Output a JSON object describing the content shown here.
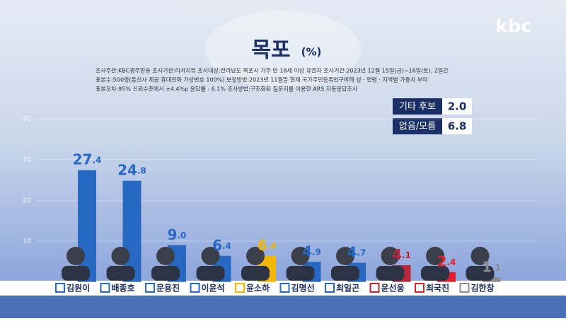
{
  "chart_data": {
    "type": "bar",
    "logo": "kbc",
    "title": "목포",
    "unit": "(%)",
    "notes": [
      "조사주관:KBC광주방송   조사기관:리서치뷰   조사대상:전라남도 목포시 거주 만 18세 이상 유권자  조사기간:2023년 12월 15일(금)~16일(토), 2일간",
      "표본수:500명(통신사 제공 휴대전화 가상번호 100%)   보정방법:2023년 11월말 현재 국가주민등록인구비례 성 · 연령 · 지역별 가중치 부여",
      "표본오차:95% 신뢰수준에서 ±4.4%p   응답률 : 6.1%   조사방법:구조화된 질문지를 이용한 ARS 자동응답조사"
    ],
    "extra": [
      {
        "label": "기타 후보",
        "value": "2.0"
      },
      {
        "label": "없음/모름",
        "value": "6.8"
      }
    ],
    "categories": [
      "김원이",
      "배종호",
      "문용진",
      "이윤석",
      "윤소하",
      "김명선",
      "최일곤",
      "윤선웅",
      "최국진",
      "김한창"
    ],
    "values": [
      27.4,
      24.8,
      9.0,
      6.4,
      6.4,
      4.9,
      4.7,
      4.1,
      2.4,
      1.1
    ],
    "value_labels": [
      "27.4",
      "24.8",
      "9.0",
      "6.4",
      "6.4",
      "4.9",
      "4.7",
      "4.1",
      "2.4",
      "1.1"
    ],
    "colors": [
      "#2769c2",
      "#2769c2",
      "#2769c2",
      "#2769c2",
      "#f2b705",
      "#2769c2",
      "#2769c2",
      "#b8283a",
      "#e3202f",
      "#8c8c8c"
    ],
    "ylim": [
      0,
      40
    ],
    "yticks": [
      10,
      20,
      30,
      40
    ],
    "grid": true
  }
}
